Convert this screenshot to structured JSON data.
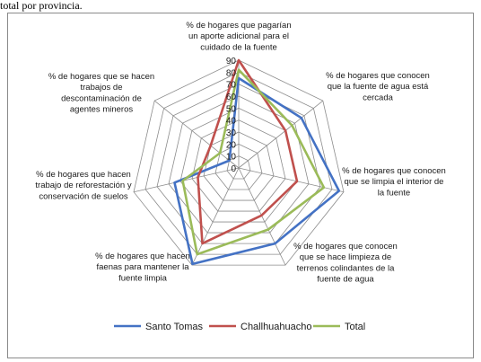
{
  "caption": "total por provincia.",
  "chart_data": {
    "type": "radar",
    "axes": [
      [
        "% de hogares que pagarían",
        "un aporte adicional para el",
        "cuidado de la fuente"
      ],
      [
        "% de hogares que conocen",
        "que la fuente de agua está",
        "cercada"
      ],
      [
        "% de hogares que conocen",
        "que se limpia el interior de",
        "la fuente"
      ],
      [
        "% de hogares que conocen",
        "que se hace limpieza de",
        "terrenos colindantes de la",
        "fuente de agua"
      ],
      [
        "% de hogares que hacen",
        "faenas para mantener la",
        "fuente limpia"
      ],
      [
        "% de hogares que hacen",
        "trabajo de reforestación y",
        "conservación de suelos"
      ],
      [
        "% de hogares que se hacen",
        "trabajos de",
        "descontaminación de",
        "agentes mineros"
      ]
    ],
    "ticks": [
      "0",
      "10",
      "20",
      "30",
      "40",
      "50",
      "60",
      "70",
      "80",
      "90"
    ],
    "rlim": [
      0,
      90
    ],
    "legend_position": "bottom",
    "series": [
      {
        "name": "Santo Tomas",
        "color": "#4472c4",
        "values": [
          75,
          67,
          86,
          70,
          89,
          55,
          10
        ]
      },
      {
        "name": "Challhuahuacho",
        "color": "#c0504d",
        "values": [
          90,
          50,
          50,
          44,
          70,
          35,
          30
        ]
      },
      {
        "name": "Total",
        "color": "#9bbb59",
        "values": [
          82,
          57,
          73,
          57,
          80,
          48,
          20
        ]
      }
    ]
  }
}
